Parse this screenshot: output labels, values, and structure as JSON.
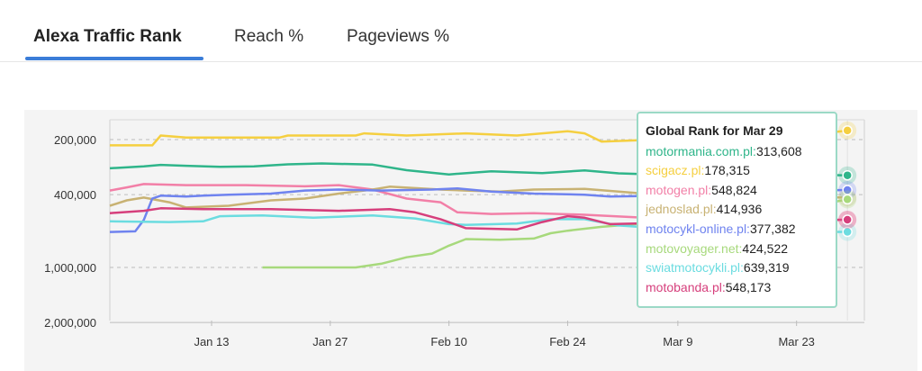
{
  "tabs": [
    {
      "label": "Alexa Traffic Rank",
      "active": true
    },
    {
      "label": "Reach %",
      "active": false
    },
    {
      "label": "Pageviews %",
      "active": false
    }
  ],
  "tooltip": {
    "title": "Global Rank for Mar 29",
    "rows": [
      {
        "site": "motormania.com.pl:",
        "value": "313,608",
        "color": "#2fb58a"
      },
      {
        "site": "scigacz.pl:",
        "value": "178,315",
        "color": "#f5cf40"
      },
      {
        "site": "motogen.pl:",
        "value": "548,824",
        "color": "#f27fa7"
      },
      {
        "site": "jednoslad.pl:",
        "value": "414,936",
        "color": "#c8b273"
      },
      {
        "site": "motocykl-online.pl:",
        "value": "377,382",
        "color": "#6f83ef"
      },
      {
        "site": "motovoyager.net:",
        "value": "424,522",
        "color": "#a7d97c"
      },
      {
        "site": "swiatmotocykli.pl:",
        "value": "639,319",
        "color": "#6bdce0"
      },
      {
        "site": "motobanda.pl:",
        "value": "548,173",
        "color": "#d63f7c"
      }
    ]
  },
  "chart_data": {
    "type": "line",
    "y_scale": "log",
    "y_inverted": true,
    "y_ticks": [
      200000,
      400000,
      1000000,
      2000000
    ],
    "y_tick_labels": [
      "200,000",
      "400,000",
      "1,000,000",
      "2,000,000"
    ],
    "x_ticks": [
      "Jan 13",
      "Jan 27",
      "Feb 10",
      "Feb 24",
      "Mar 9",
      "Mar 23"
    ],
    "x_range": [
      "Jan 1",
      "Mar 31"
    ],
    "grid": "dashed horizontal",
    "series": [
      {
        "name": "scigacz.pl",
        "color": "#f5cf40",
        "points": [
          [
            "Jan 1",
            215000
          ],
          [
            "Jan 6",
            215000
          ],
          [
            "Jan 7",
            190000
          ],
          [
            "Jan 10",
            195000
          ],
          [
            "Jan 20",
            195000
          ],
          [
            "Jan 21",
            195000
          ],
          [
            "Jan 22",
            190000
          ],
          [
            "Jan 30",
            190000
          ],
          [
            "Jan 31",
            185000
          ],
          [
            "Feb 5",
            190000
          ],
          [
            "Feb 12",
            185000
          ],
          [
            "Feb 18",
            190000
          ],
          [
            "Feb 24",
            180000
          ],
          [
            "Feb 26",
            185000
          ],
          [
            "Feb 28",
            205000
          ],
          [
            "Mar 4",
            202000
          ],
          [
            "Mar 10",
            200000
          ],
          [
            "Mar 16",
            199000
          ],
          [
            "Mar 22",
            196000
          ],
          [
            "Mar 29",
            178315
          ]
        ]
      },
      {
        "name": "motormania.com.pl",
        "color": "#2fb58a",
        "points": [
          [
            "Jan 1",
            287000
          ],
          [
            "Jan 5",
            280000
          ],
          [
            "Jan 7",
            275000
          ],
          [
            "Jan 10",
            278000
          ],
          [
            "Jan 14",
            282000
          ],
          [
            "Jan 18",
            280000
          ],
          [
            "Jan 22",
            273000
          ],
          [
            "Jan 26",
            270000
          ],
          [
            "Feb 1",
            274000
          ],
          [
            "Feb 5",
            294000
          ],
          [
            "Feb 10",
            310000
          ],
          [
            "Feb 15",
            298000
          ],
          [
            "Feb 21",
            305000
          ],
          [
            "Feb 26",
            295000
          ],
          [
            "Mar 2",
            306000
          ],
          [
            "Mar 8",
            312000
          ],
          [
            "Mar 14",
            318000
          ],
          [
            "Mar 20",
            318000
          ],
          [
            "Mar 26",
            312000
          ],
          [
            "Mar 29",
            313608
          ]
        ]
      },
      {
        "name": "motogen.pl",
        "color": "#f27fa7",
        "points": [
          [
            "Jan 1",
            380000
          ],
          [
            "Jan 3",
            365000
          ],
          [
            "Jan 5",
            350000
          ],
          [
            "Jan 10",
            355000
          ],
          [
            "Jan 17",
            355000
          ],
          [
            "Jan 24",
            360000
          ],
          [
            "Jan 28",
            355000
          ],
          [
            "Feb 1",
            375000
          ],
          [
            "Feb 5",
            420000
          ],
          [
            "Feb 9",
            440000
          ],
          [
            "Feb 11",
            500000
          ],
          [
            "Feb 15",
            510000
          ],
          [
            "Feb 20",
            505000
          ],
          [
            "Feb 26",
            515000
          ],
          [
            "Mar 5",
            535000
          ],
          [
            "Mar 12",
            545000
          ],
          [
            "Mar 20",
            548000
          ],
          [
            "Mar 29",
            548824
          ]
        ]
      },
      {
        "name": "jednoslad.pl",
        "color": "#c8b273",
        "points": [
          [
            "Jan 1",
            460000
          ],
          [
            "Jan 3",
            430000
          ],
          [
            "Jan 5",
            415000
          ],
          [
            "Jan 8",
            440000
          ],
          [
            "Jan 10",
            470000
          ],
          [
            "Jan 15",
            460000
          ],
          [
            "Jan 20",
            430000
          ],
          [
            "Jan 24",
            420000
          ],
          [
            "Jan 28",
            395000
          ],
          [
            "Feb 1",
            375000
          ],
          [
            "Feb 3",
            362000
          ],
          [
            "Feb 9",
            375000
          ],
          [
            "Feb 12",
            380000
          ],
          [
            "Feb 16",
            385000
          ],
          [
            "Feb 20",
            375000
          ],
          [
            "Feb 26",
            372000
          ],
          [
            "Mar 5",
            395000
          ],
          [
            "Mar 12",
            405000
          ],
          [
            "Mar 20",
            410000
          ],
          [
            "Mar 29",
            414936
          ]
        ]
      },
      {
        "name": "motocykl-online.pl",
        "color": "#6f83ef",
        "points": [
          [
            "Jan 1",
            640000
          ],
          [
            "Jan 4",
            635000
          ],
          [
            "Jan 5",
            550000
          ],
          [
            "Jan 6",
            420000
          ],
          [
            "Jan 7",
            405000
          ],
          [
            "Jan 10",
            410000
          ],
          [
            "Jan 12",
            405000
          ],
          [
            "Jan 15",
            400000
          ],
          [
            "Jan 20",
            395000
          ],
          [
            "Jan 24",
            380000
          ],
          [
            "Jan 28",
            375000
          ],
          [
            "Feb 2",
            380000
          ],
          [
            "Feb 8",
            375000
          ],
          [
            "Feb 11",
            370000
          ],
          [
            "Feb 15",
            385000
          ],
          [
            "Feb 20",
            395000
          ],
          [
            "Feb 26",
            400000
          ],
          [
            "Mar 1",
            410000
          ],
          [
            "Mar 8",
            405000
          ],
          [
            "Mar 16",
            390000
          ],
          [
            "Mar 24",
            380000
          ],
          [
            "Mar 29",
            377382
          ]
        ]
      },
      {
        "name": "motovoyager.net",
        "color": "#a7d97c",
        "points": [
          [
            "Jan 19",
            1000000
          ],
          [
            "Jan 30",
            1000000
          ],
          [
            "Feb 2",
            955000
          ],
          [
            "Feb 5",
            880000
          ],
          [
            "Feb 8",
            840000
          ],
          [
            "Feb 10",
            760000
          ],
          [
            "Feb 12",
            700000
          ],
          [
            "Feb 16",
            705000
          ],
          [
            "Feb 20",
            695000
          ],
          [
            "Feb 22",
            650000
          ],
          [
            "Feb 24",
            630000
          ],
          [
            "Feb 28",
            600000
          ],
          [
            "Mar 4",
            580000
          ],
          [
            "Mar 10",
            560000
          ],
          [
            "Mar 18",
            510000
          ],
          [
            "Mar 24",
            470000
          ],
          [
            "Mar 29",
            424522
          ]
        ]
      },
      {
        "name": "swiatmotocykli.pl",
        "color": "#6bdce0",
        "points": [
          [
            "Jan 1",
            560000
          ],
          [
            "Jan 8",
            565000
          ],
          [
            "Jan 12",
            560000
          ],
          [
            "Jan 14",
            525000
          ],
          [
            "Jan 19",
            520000
          ],
          [
            "Jan 25",
            535000
          ],
          [
            "Feb 1",
            520000
          ],
          [
            "Feb 6",
            540000
          ],
          [
            "Feb 10",
            580000
          ],
          [
            "Feb 12",
            585000
          ],
          [
            "Feb 18",
            575000
          ],
          [
            "Feb 22",
            545000
          ],
          [
            "Feb 26",
            545000
          ],
          [
            "Mar 2",
            590000
          ],
          [
            "Mar 8",
            615000
          ],
          [
            "Mar 16",
            630000
          ],
          [
            "Mar 24",
            640000
          ],
          [
            "Mar 29",
            639319
          ]
        ]
      },
      {
        "name": "motobanda.pl",
        "color": "#d63f7c",
        "points": [
          [
            "Jan 1",
            505000
          ],
          [
            "Jan 5",
            490000
          ],
          [
            "Jan 7",
            475000
          ],
          [
            "Jan 12",
            480000
          ],
          [
            "Jan 20",
            480000
          ],
          [
            "Jan 28",
            490000
          ],
          [
            "Feb 3",
            480000
          ],
          [
            "Feb 6",
            500000
          ],
          [
            "Feb 9",
            545000
          ],
          [
            "Feb 12",
            610000
          ],
          [
            "Feb 18",
            620000
          ],
          [
            "Feb 21",
            565000
          ],
          [
            "Feb 24",
            525000
          ],
          [
            "Feb 26",
            535000
          ],
          [
            "Mar 1",
            580000
          ],
          [
            "Mar 8",
            570000
          ],
          [
            "Mar 16",
            560000
          ],
          [
            "Mar 24",
            552000
          ],
          [
            "Mar 29",
            548173
          ]
        ]
      }
    ]
  }
}
